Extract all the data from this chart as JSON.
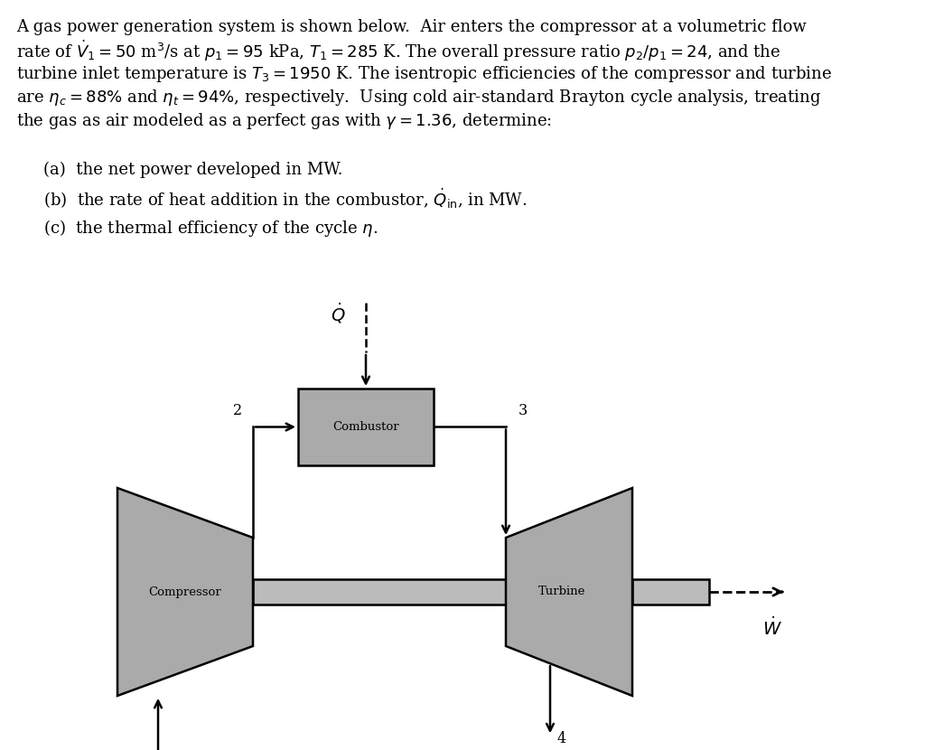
{
  "background_color": "#ffffff",
  "text_color": "#000000",
  "component_fill": "#aaaaaa",
  "component_edge": "#000000",
  "shaft_fill": "#bbbbbb",
  "font_size_text": 13.0,
  "font_size_label": 9.5,
  "font_size_num": 11.5,
  "paragraph_lines": [
    "A gas power generation system is shown below.  Air enters the compressor at a volumetric flow",
    "rate of $\\dot{V}_1 = 50$ m$^3$/s at $p_1 = 95$ kPa, $T_1 = 285$ K. The overall pressure ratio $p_2/p_1 = 24$, and the",
    "turbine inlet temperature is $T_3 = 1950$ K. The isentropic efficiencies of the compressor and turbine",
    "are $\\eta_c = 88\\%$ and $\\eta_t = 94\\%$, respectively.  Using cold air-standard Brayton cycle analysis, treating",
    "the gas as air modeled as a perfect gas with $\\gamma = 1.36$, determine:"
  ],
  "items": [
    "(a)  the net power developed in MW.",
    "(b)  the rate of heat addition in the combustor, $\\dot{Q}_{\\rm in}$, in MW.",
    "(c)  the thermal efficiency of the cycle $\\eta$."
  ]
}
